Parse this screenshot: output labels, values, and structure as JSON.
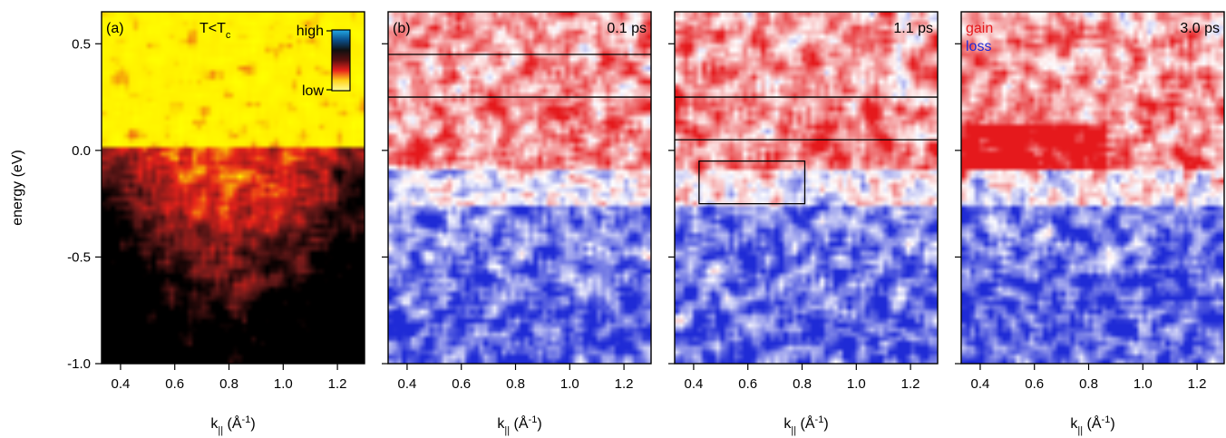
{
  "chart_data": [
    {
      "type": "heatmap",
      "panel_label": "(a)",
      "annotation": {
        "main": "T<T",
        "sub": "c"
      },
      "colormap": [
        "#000000",
        "#6b1a1a",
        "#e8221b",
        "#ffef00",
        "#ffff00"
      ],
      "colorscale_labels": {
        "high": "high",
        "low": "low"
      },
      "xlabel": {
        "main": "k",
        "sub": "||",
        "unit_open": " (Å",
        "sup": "-1",
        "unit_close": ")"
      },
      "ylabel": "energy (eV)",
      "xlim": [
        0.33,
        1.3
      ],
      "ylim": [
        -1.0,
        0.65
      ],
      "xticks": [
        "0.4",
        "0.6",
        "0.8",
        "1.0",
        "1.2"
      ],
      "yticks": [
        "0.5",
        "0.0",
        "-0.5",
        "-1.0"
      ],
      "boxes": []
    },
    {
      "type": "heatmap",
      "panel_label": "(b)",
      "time_label": "0.1 ps",
      "colormap": [
        "#1f2bd6",
        "#ffffff",
        "#e5191c"
      ],
      "xlabel": {
        "main": "k",
        "sub": "||",
        "unit_open": " (Å",
        "sup": "-1",
        "unit_close": ")"
      },
      "xlim": [
        0.33,
        1.3
      ],
      "ylim": [
        -1.0,
        0.65
      ],
      "xticks": [
        "0.4",
        "0.6",
        "0.8",
        "1.0",
        "1.2"
      ],
      "hlines": [
        0.45,
        0.25
      ],
      "boxes": []
    },
    {
      "type": "heatmap",
      "panel_label": "",
      "time_label": "1.1 ps",
      "colormap": [
        "#1f2bd6",
        "#ffffff",
        "#e5191c"
      ],
      "xlabel": {
        "main": "k",
        "sub": "||",
        "unit_open": " (Å",
        "sup": "-1",
        "unit_close": ")"
      },
      "xlim": [
        0.33,
        1.3
      ],
      "ylim": [
        -1.0,
        0.65
      ],
      "xticks": [
        "0.4",
        "0.6",
        "0.8",
        "1.0",
        "1.2"
      ],
      "hlines": [
        0.25,
        0.05
      ],
      "boxes": [
        {
          "x0": 0.42,
          "x1": 0.81,
          "y0": -0.25,
          "y1": -0.05
        }
      ]
    },
    {
      "type": "heatmap",
      "panel_label": "",
      "time_label": "3.0 ps",
      "legend": [
        {
          "label": "gain",
          "color": "#e5191c"
        },
        {
          "label": "loss",
          "color": "#1f2bd6"
        }
      ],
      "colormap": [
        "#1f2bd6",
        "#ffffff",
        "#e5191c"
      ],
      "xlabel": {
        "main": "k",
        "sub": "||",
        "unit_open": " (Å",
        "sup": "-1",
        "unit_close": ")"
      },
      "xlim": [
        0.33,
        1.3
      ],
      "ylim": [
        -1.0,
        0.65
      ],
      "xticks": [
        "0.4",
        "0.6",
        "0.8",
        "1.0",
        "1.2"
      ],
      "hlines": [],
      "boxes": []
    }
  ]
}
